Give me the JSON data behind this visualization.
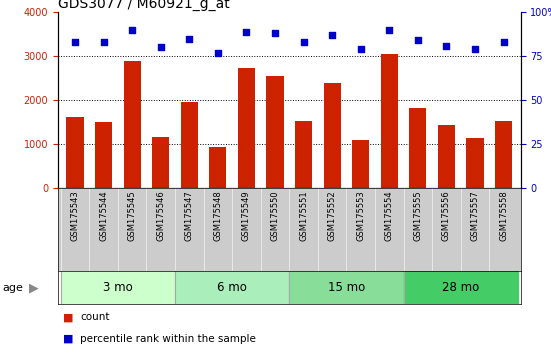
{
  "title": "GDS3077 / M60921_g_at",
  "samples": [
    "GSM175543",
    "GSM175544",
    "GSM175545",
    "GSM175546",
    "GSM175547",
    "GSM175548",
    "GSM175549",
    "GSM175550",
    "GSM175551",
    "GSM175552",
    "GSM175553",
    "GSM175554",
    "GSM175555",
    "GSM175556",
    "GSM175557",
    "GSM175558"
  ],
  "counts": [
    1620,
    1500,
    2900,
    1150,
    1950,
    930,
    2720,
    2540,
    1530,
    2380,
    1080,
    3050,
    1820,
    1430,
    1130,
    1530
  ],
  "percentiles": [
    83,
    83,
    90,
    80,
    85,
    77,
    89,
    88,
    83,
    87,
    79,
    90,
    84,
    81,
    79,
    83
  ],
  "ylim_left": [
    0,
    4000
  ],
  "ylim_right": [
    0,
    100
  ],
  "yticks_left": [
    0,
    1000,
    2000,
    3000,
    4000
  ],
  "yticks_right": [
    0,
    25,
    50,
    75,
    100
  ],
  "bar_color": "#cc2200",
  "dot_color": "#0000cc",
  "age_groups": [
    {
      "label": "3 mo",
      "start": 0,
      "end": 3,
      "color": "#ccffcc"
    },
    {
      "label": "6 mo",
      "start": 4,
      "end": 7,
      "color": "#aaeebb"
    },
    {
      "label": "15 mo",
      "start": 8,
      "end": 11,
      "color": "#88dd99"
    },
    {
      "label": "28 mo",
      "start": 12,
      "end": 15,
      "color": "#44cc66"
    }
  ],
  "title_fontsize": 10,
  "tick_fontsize": 7,
  "label_fontsize": 6,
  "age_fontsize": 8.5
}
